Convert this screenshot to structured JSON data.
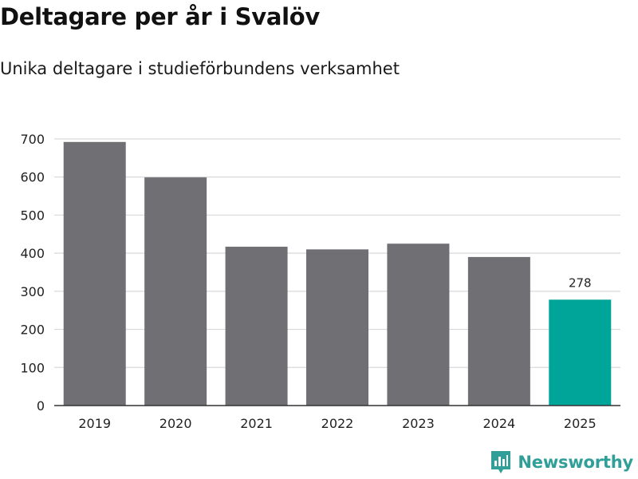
{
  "header": {
    "title": "Deltagare per år i Svalöv",
    "subtitle": "Unika deltagare i studieförbundens verksamhet"
  },
  "logo": {
    "text": "Newsworthy",
    "icon": "newsworthy-logo-icon"
  },
  "colors": {
    "bar_default": "#706f74",
    "bar_highlight": "#00a59a",
    "grid": "#d9d9d9",
    "axis": "#333333",
    "brand": "#2f9f98"
  },
  "chart_data": {
    "type": "bar",
    "title": "Deltagare per år i Svalöv",
    "subtitle": "Unika deltagare i studieförbundens verksamhet",
    "xlabel": "",
    "ylabel": "",
    "categories": [
      "2019",
      "2020",
      "2021",
      "2022",
      "2023",
      "2024",
      "2025"
    ],
    "values": [
      692,
      599,
      417,
      410,
      425,
      390,
      278
    ],
    "highlight_index": 6,
    "data_labels": {
      "6": "278"
    },
    "ylim": [
      0,
      700
    ],
    "yticks": [
      0,
      100,
      200,
      300,
      400,
      500,
      600,
      700
    ],
    "grid": true,
    "legend": "none"
  }
}
